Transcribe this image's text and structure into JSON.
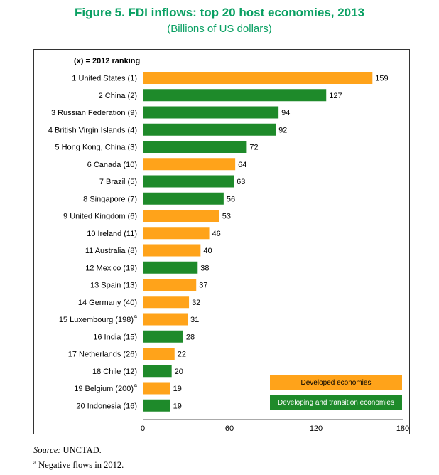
{
  "figure": {
    "title": "Figure 5.  FDI inflows: top 20 host economies, 2013",
    "subtitle": "(Billions of US dollars)",
    "ranking_note": "(x) = 2012 ranking"
  },
  "legend": {
    "developed": "Developed economies",
    "developing": "Developing and transition economies"
  },
  "footer": {
    "source_label": "Source:",
    "source_value": " UNCTAD.",
    "note_mark": "a",
    "note_text": " Negative flows in 2012."
  },
  "colors": {
    "developed": "#ffa31a",
    "developing": "#1e8a2a",
    "title": "#0aa063"
  },
  "chart_data": {
    "type": "bar",
    "orientation": "horizontal",
    "title": "Figure 5.  FDI inflows: top 20 host economies, 2013",
    "subtitle": "(Billions of US dollars)",
    "xlim": [
      0,
      180
    ],
    "xticks": [
      "0",
      "60",
      "120",
      "180"
    ],
    "grid": false,
    "legend_position": "bottom-right",
    "categories": [
      {
        "label": "1 United States (1)",
        "sup": "",
        "value": 159,
        "group": "developed"
      },
      {
        "label": "2 China (2)",
        "sup": "",
        "value": 127,
        "group": "developing"
      },
      {
        "label": "3 Russian Federation (9)",
        "sup": "",
        "value": 94,
        "group": "developing"
      },
      {
        "label": "4 British Virgin Islands (4)",
        "sup": "",
        "value": 92,
        "group": "developing"
      },
      {
        "label": "5 Hong Kong, China (3)",
        "sup": "",
        "value": 72,
        "group": "developing"
      },
      {
        "label": "6 Canada (10)",
        "sup": "",
        "value": 64,
        "group": "developed"
      },
      {
        "label": "7 Brazil (5)",
        "sup": "",
        "value": 63,
        "group": "developing"
      },
      {
        "label": "8 Singapore (7)",
        "sup": "",
        "value": 56,
        "group": "developing"
      },
      {
        "label": "9 United Kingdom (6)",
        "sup": "",
        "value": 53,
        "group": "developed"
      },
      {
        "label": "10 Ireland (11)",
        "sup": "",
        "value": 46,
        "group": "developed"
      },
      {
        "label": "11 Australia (8)",
        "sup": "",
        "value": 40,
        "group": "developed"
      },
      {
        "label": "12 Mexico (19)",
        "sup": "",
        "value": 38,
        "group": "developing"
      },
      {
        "label": "13 Spain (13)",
        "sup": "",
        "value": 37,
        "group": "developed"
      },
      {
        "label": "14 Germany (40)",
        "sup": "",
        "value": 32,
        "group": "developed"
      },
      {
        "label": "15 Luxembourg (198)",
        "sup": "a",
        "value": 31,
        "group": "developed"
      },
      {
        "label": "16 India (15)",
        "sup": "",
        "value": 28,
        "group": "developing"
      },
      {
        "label": "17 Netherlands (26)",
        "sup": "",
        "value": 22,
        "group": "developed"
      },
      {
        "label": "18 Chile (12)",
        "sup": "",
        "value": 20,
        "group": "developing"
      },
      {
        "label": "19 Belgium (200)",
        "sup": "a",
        "value": 19,
        "group": "developed"
      },
      {
        "label": "20 Indonesia (16)",
        "sup": "",
        "value": 19,
        "group": "developing"
      }
    ]
  }
}
